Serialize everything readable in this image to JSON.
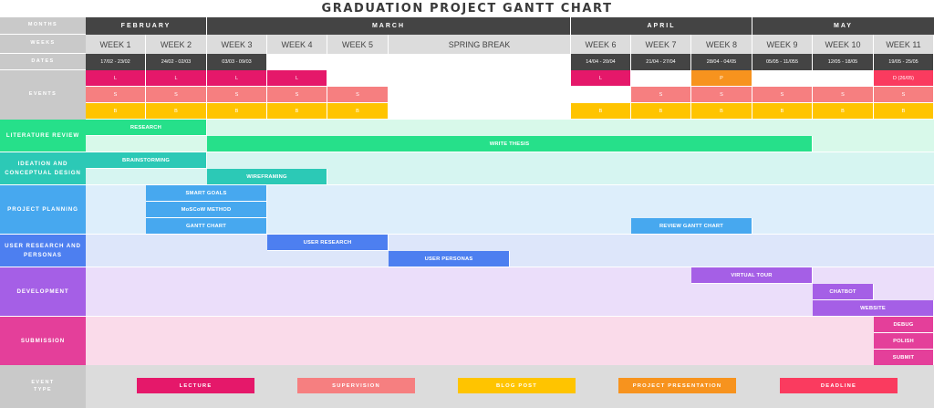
{
  "title": "GRADUATION PROJECT GANTT CHART",
  "labels": {
    "months": "MONTHS",
    "weeks": "WEEKS",
    "dates": "DATES",
    "events": "EVENTS",
    "event_type": "EVENT\nTYPE"
  },
  "colors": {
    "header_dark": "#444444",
    "header_gray": "#c9c9c9",
    "week_row_bg": "#dcdcdc",
    "lecture": "#e5186a",
    "supervision": "#f67f80",
    "blog_post": "#ffc400",
    "presentation": "#f7931e",
    "deadline": "#fa3b5f"
  },
  "chart_data": {
    "type": "gantt",
    "title": "GRADUATION PROJECT GANTT CHART",
    "months": [
      {
        "label": "FEBRUARY",
        "start_col": 0,
        "end_col": 2
      },
      {
        "label": "MARCH",
        "start_col": 2,
        "end_col": 8
      },
      {
        "label": "APRIL",
        "start_col": 8,
        "end_col": 11
      },
      {
        "label": "MAY",
        "start_col": 11,
        "end_col": 14
      }
    ],
    "columns": [
      {
        "week": "WEEK 1",
        "dates": "17/02 - 23/02"
      },
      {
        "week": "WEEK 2",
        "dates": "24/02 - 02/03"
      },
      {
        "week": "WEEK 3",
        "dates": "03/03 - 09/03"
      },
      {
        "week": "WEEK 4",
        "dates": ""
      },
      {
        "week": "WEEK 5",
        "dates": ""
      },
      {
        "week": "SPRING BREAK",
        "dates": ""
      },
      {
        "week": "",
        "dates": ""
      },
      {
        "week": "",
        "dates": ""
      },
      {
        "week": "WEEK 6",
        "dates": "14/04 - 20/04"
      },
      {
        "week": "WEEK 7",
        "dates": "21/04 - 27/04"
      },
      {
        "week": "WEEK 8",
        "dates": "28/04 - 04/05"
      },
      {
        "week": "WEEK 9",
        "dates": "05/05 - 11/055"
      },
      {
        "week": "WEEK 10",
        "dates": "12/05 - 18/05"
      },
      {
        "week": "WEEK 11",
        "dates": "19/05 - 25/05"
      }
    ],
    "events": [
      {
        "row": 0,
        "col": 0,
        "type": "lecture",
        "label": "L"
      },
      {
        "row": 0,
        "col": 1,
        "type": "lecture",
        "label": "L"
      },
      {
        "row": 0,
        "col": 2,
        "type": "lecture",
        "label": "L"
      },
      {
        "row": 0,
        "col": 3,
        "type": "lecture",
        "label": "L"
      },
      {
        "row": 0,
        "col": 8,
        "type": "lecture",
        "label": "L"
      },
      {
        "row": 0,
        "col": 10,
        "type": "presentation",
        "label": "P"
      },
      {
        "row": 0,
        "col": 13,
        "type": "deadline",
        "label": "D (26/05)"
      },
      {
        "row": 1,
        "col": 0,
        "type": "supervision",
        "label": "S"
      },
      {
        "row": 1,
        "col": 1,
        "type": "supervision",
        "label": "S"
      },
      {
        "row": 1,
        "col": 2,
        "type": "supervision",
        "label": "S"
      },
      {
        "row": 1,
        "col": 3,
        "type": "supervision",
        "label": "S"
      },
      {
        "row": 1,
        "col": 4,
        "type": "supervision",
        "label": "S"
      },
      {
        "row": 1,
        "col": 9,
        "type": "supervision",
        "label": "S"
      },
      {
        "row": 1,
        "col": 10,
        "type": "supervision",
        "label": "S"
      },
      {
        "row": 1,
        "col": 11,
        "type": "supervision",
        "label": "S"
      },
      {
        "row": 1,
        "col": 12,
        "type": "supervision",
        "label": "S"
      },
      {
        "row": 1,
        "col": 13,
        "type": "supervision",
        "label": "S"
      },
      {
        "row": 2,
        "col": 0,
        "type": "blog_post",
        "label": "B"
      },
      {
        "row": 2,
        "col": 1,
        "type": "blog_post",
        "label": "B"
      },
      {
        "row": 2,
        "col": 2,
        "type": "blog_post",
        "label": "B"
      },
      {
        "row": 2,
        "col": 3,
        "type": "blog_post",
        "label": "B"
      },
      {
        "row": 2,
        "col": 4,
        "type": "blog_post",
        "label": "B"
      },
      {
        "row": 2,
        "col": 8,
        "type": "blog_post",
        "label": "B"
      },
      {
        "row": 2,
        "col": 9,
        "type": "blog_post",
        "label": "B"
      },
      {
        "row": 2,
        "col": 10,
        "type": "blog_post",
        "label": "B"
      },
      {
        "row": 2,
        "col": 11,
        "type": "blog_post",
        "label": "B"
      },
      {
        "row": 2,
        "col": 12,
        "type": "blog_post",
        "label": "B"
      },
      {
        "row": 2,
        "col": 13,
        "type": "blog_post",
        "label": "B"
      }
    ],
    "categories": [
      {
        "label": "LITERATURE REVIEW",
        "lanes": 2,
        "color": "#26e08a",
        "bg": "#d8f9ea",
        "tasks": [
          {
            "label": "RESEARCH",
            "lane": 0,
            "start": 0,
            "end": 2
          },
          {
            "label": "WRITE THESIS",
            "lane": 1,
            "start": 2,
            "end": 12
          }
        ]
      },
      {
        "label": "IDEATION AND CONCEPTUAL DESIGN",
        "lanes": 2,
        "color": "#2cc9b6",
        "bg": "#d6f5f1",
        "tasks": [
          {
            "label": "BRAINSTORMING",
            "lane": 0,
            "start": 0,
            "end": 2
          },
          {
            "label": "WIREFRAMING",
            "lane": 1,
            "start": 2,
            "end": 4
          }
        ]
      },
      {
        "label": "PROJECT PLANNING",
        "lanes": 3,
        "color": "#47a8ef",
        "bg": "#ddeefb",
        "tasks": [
          {
            "label": "SMART GOALS",
            "lane": 0,
            "start": 1,
            "end": 3
          },
          {
            "label": "MoSCoW METHOD",
            "lane": 1,
            "start": 1,
            "end": 3
          },
          {
            "label": "GANTT CHART",
            "lane": 2,
            "start": 1,
            "end": 3
          },
          {
            "label": "REVIEW GANTT CHART",
            "lane": 2,
            "start": 9,
            "end": 11
          }
        ]
      },
      {
        "label": "USER RESEARCH AND PERSONAS",
        "lanes": 2,
        "color": "#4d7ff0",
        "bg": "#dde6fa",
        "tasks": [
          {
            "label": "USER RESEARCH",
            "lane": 0,
            "start": 3,
            "end": 5
          },
          {
            "label": "USER PERSONAS",
            "lane": 1,
            "start": 5,
            "end": 7
          }
        ]
      },
      {
        "label": "DEVELOPMENT",
        "lanes": 3,
        "color": "#a55fe6",
        "bg": "#ebdefa",
        "tasks": [
          {
            "label": "VIRTUAL TOUR",
            "lane": 0,
            "start": 10,
            "end": 12
          },
          {
            "label": "CHATBOT",
            "lane": 1,
            "start": 12,
            "end": 13
          },
          {
            "label": "WEBSITE",
            "lane": 2,
            "start": 12,
            "end": 14
          }
        ]
      },
      {
        "label": "SUBMISSION",
        "lanes": 3,
        "color": "#e43f9a",
        "bg": "#fadbea",
        "tasks": [
          {
            "label": "DEBUG",
            "lane": 0,
            "start": 13,
            "end": 14
          },
          {
            "label": "POLISH",
            "lane": 1,
            "start": 13,
            "end": 14
          },
          {
            "label": "SUBMIT",
            "lane": 2,
            "start": 13,
            "end": 14
          }
        ]
      }
    ],
    "legend": [
      {
        "label": "LECTURE",
        "type": "lecture"
      },
      {
        "label": "SUPERVISION",
        "type": "supervision"
      },
      {
        "label": "BLOG POST",
        "type": "blog_post"
      },
      {
        "label": "PROJECT PRESENTATION",
        "type": "presentation"
      },
      {
        "label": "DEADLINE",
        "type": "deadline"
      }
    ]
  }
}
